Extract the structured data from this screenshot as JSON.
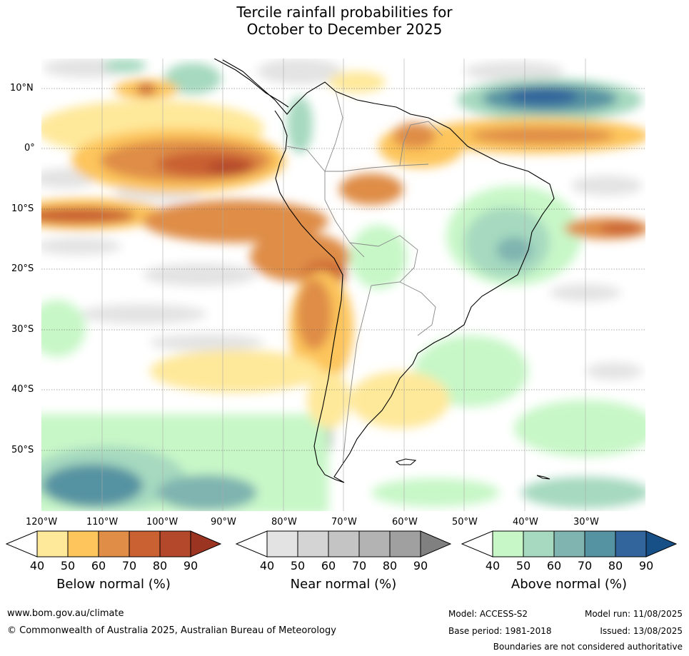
{
  "title_line1": "Tercile rainfall probabilities for",
  "title_line2": "October to December 2025",
  "map": {
    "lon_labels": [
      "120°W",
      "110°W",
      "100°W",
      "90°W",
      "80°W",
      "70°W",
      "60°W",
      "50°W",
      "40°W",
      "30°W"
    ],
    "lat_labels": [
      "10°N",
      "0°",
      "10°S",
      "20°S",
      "30°S",
      "40°S",
      "50°S"
    ]
  },
  "colorbars": [
    {
      "name": "below",
      "title": "Below normal (%)",
      "ticks": [
        "40",
        "50",
        "60",
        "70",
        "80",
        "90"
      ],
      "colors": [
        "#ffffff",
        "#fee89a",
        "#fdc55c",
        "#df8d47",
        "#c96132",
        "#b4482a",
        "#9b3421"
      ]
    },
    {
      "name": "near",
      "title": "Near normal (%)",
      "ticks": [
        "40",
        "50",
        "60",
        "70",
        "80",
        "90"
      ],
      "colors": [
        "#ffffff",
        "#e3e3e3",
        "#d4d4d4",
        "#c4c4c4",
        "#b3b3b3",
        "#a0a0a0",
        "#808080"
      ]
    },
    {
      "name": "above",
      "title": "Above normal (%)",
      "ticks": [
        "40",
        "50",
        "60",
        "70",
        "80",
        "90"
      ],
      "colors": [
        "#ffffff",
        "#c7f7c7",
        "#a6d9bf",
        "#7fb4b0",
        "#5693a2",
        "#31659b",
        "#174f87"
      ]
    }
  ],
  "footer": {
    "url": "www.bom.gov.au/climate",
    "copyright": "© Commonwealth of Australia 2025, Australian Bureau of Meteorology",
    "model": "Model: ACCESS-S2",
    "base_period": "Base period: 1981-2018",
    "model_run": "Model run: 11/08/2025",
    "issued": "Issued: 13/08/2025",
    "disclaimer": "Boundaries are not considered authoritative"
  }
}
